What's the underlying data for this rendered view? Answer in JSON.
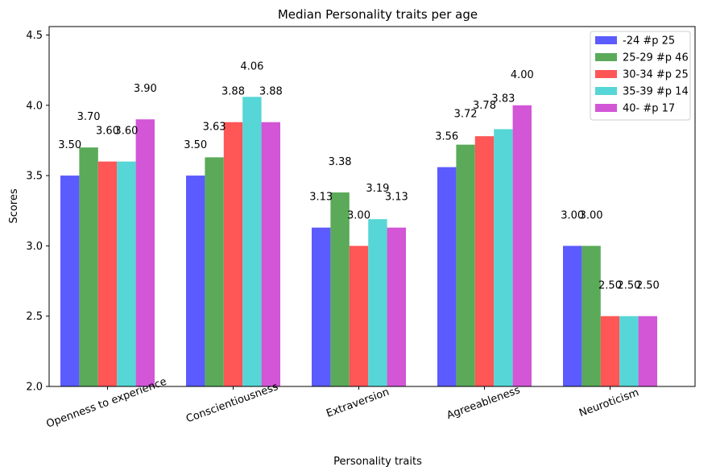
{
  "chart_data": {
    "type": "bar",
    "title": "Median Personality traits per age",
    "xlabel": "Personality traits",
    "ylabel": "Scores",
    "ylim": [
      2.0,
      4.56
    ],
    "yticks": [
      "2.0",
      "2.5",
      "3.0",
      "3.5",
      "4.0",
      "4.5"
    ],
    "categories": [
      "Openness to experience",
      "Conscientiousness",
      "Extraversion",
      "Agreeableness",
      "Neuroticism"
    ],
    "legend_position": "top-right",
    "grid": false,
    "series": [
      {
        "name": "-24 #p 25",
        "color": "#5b5bff",
        "values": [
          3.5,
          3.5,
          3.13,
          3.56,
          3.0
        ],
        "labels": [
          "3.50",
          "3.50",
          "3.13",
          "3.56",
          "3.00"
        ]
      },
      {
        "name": "25-29 #p 46",
        "color": "#5aaa5a",
        "values": [
          3.7,
          3.63,
          3.38,
          3.72,
          3.0
        ],
        "labels": [
          "3.70",
          "3.63",
          "3.38",
          "3.72",
          "3.00"
        ]
      },
      {
        "name": "30-34 #p 25",
        "color": "#ff5656",
        "values": [
          3.6,
          3.88,
          3.0,
          3.78,
          2.5
        ],
        "labels": [
          "3.60",
          "3.88",
          "3.00",
          "3.78",
          "2.50"
        ]
      },
      {
        "name": "35-39 #p 14",
        "color": "#56d6d6",
        "values": [
          3.6,
          4.06,
          3.19,
          3.83,
          2.5
        ],
        "labels": [
          "3.60",
          "4.06",
          "3.19",
          "3.83",
          "2.50"
        ]
      },
      {
        "name": "40- #p 17",
        "color": "#d256d6",
        "values": [
          3.9,
          3.88,
          3.13,
          4.0,
          2.5
        ],
        "labels": [
          "3.90",
          "3.88",
          "3.13",
          "4.00",
          "2.50"
        ]
      }
    ]
  }
}
